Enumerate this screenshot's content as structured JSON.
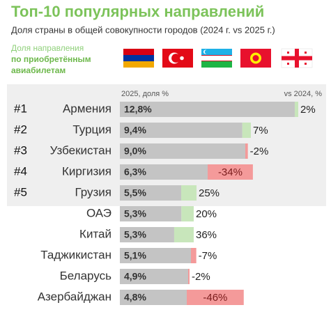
{
  "chart_data": {
    "type": "bar",
    "orientation": "horizontal",
    "title": "Топ-10 популярных направлений",
    "subtitle": "Доля страны в общей совокупности городов (2024 г. vs 2025 г.)",
    "side_label": [
      "Доля направления",
      "по приобретённым",
      "авиабилетам"
    ],
    "value_header": "2025, доля %",
    "change_header": "vs 2024, %",
    "ranks": [
      "#1",
      "#2",
      "#3",
      "#4",
      "#5"
    ],
    "categories": [
      "Армения",
      "Турция",
      "Узбекистан",
      "Киргизия",
      "Грузия",
      "ОАЭ",
      "Китай",
      "Таджикистан",
      "Беларусь",
      "Азербайджан"
    ],
    "values": [
      12.8,
      9.4,
      9.0,
      6.3,
      5.5,
      5.3,
      5.3,
      5.1,
      4.9,
      4.8
    ],
    "value_labels": [
      "12,8%",
      "9,4%",
      "9,0%",
      "6,3%",
      "5,5%",
      "5,3%",
      "5,3%",
      "5,1%",
      "4,9%",
      "4,8%"
    ],
    "changes": [
      2,
      7,
      -2,
      -34,
      25,
      20,
      36,
      -7,
      -2,
      -46
    ],
    "change_labels": [
      "2%",
      "7%",
      "-2%",
      "-34%",
      "25%",
      "20%",
      "36%",
      "-7%",
      "-2%",
      "-46%"
    ],
    "xlim": [
      0,
      15
    ],
    "color": "#c4c4c4",
    "increase_color": "#c8e6bb",
    "decrease_color": "#f49a9a"
  }
}
